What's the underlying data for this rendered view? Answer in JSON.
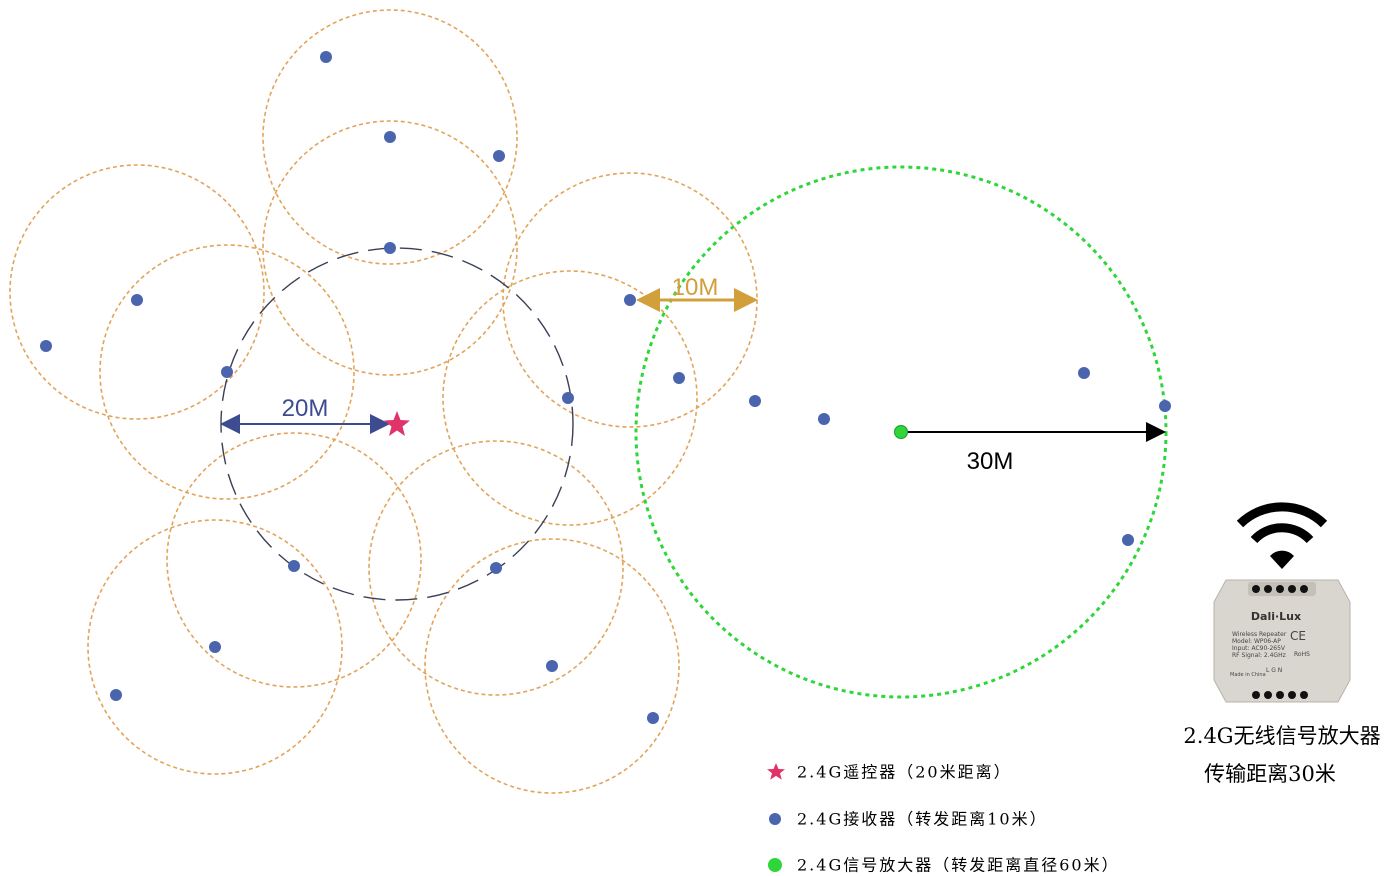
{
  "distance_labels": {
    "controller_range": "20M",
    "receiver_range": "10M",
    "amplifier_range": "30M"
  },
  "legend": [
    {
      "symbol": "star",
      "text": "2.4G遥控器（20米距离）"
    },
    {
      "symbol": "dot",
      "text": "2.4G接收器（转发距离10米）"
    },
    {
      "symbol": "green-dot",
      "text": "2.4G信号放大器（转发距离直径60米）"
    }
  ],
  "device": {
    "caption": [
      "2.4G无线信号放大器",
      "传输距离30米"
    ],
    "brand": "Dali·Lux",
    "specs": [
      "Wireless Repeater",
      "Model: WP06-AP",
      "Input: AC90-265V",
      "RF Signal: 2.4GHz"
    ],
    "marks": [
      "CE",
      "RoHS"
    ],
    "terminals": "L  G  N",
    "origin": "Made in China"
  }
}
